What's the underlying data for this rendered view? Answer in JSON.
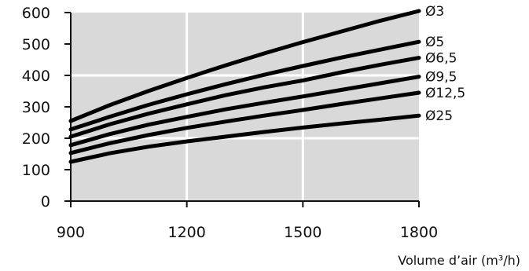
{
  "chart_data": {
    "type": "line",
    "xlabel": "Volume d’air (m³/h)",
    "ylabel": "",
    "xlim": [
      900,
      1800
    ],
    "ylim": [
      0,
      600
    ],
    "x_ticks": [
      "900",
      "1200",
      "1500",
      "1800"
    ],
    "y_ticks": [
      "0",
      "100",
      "200",
      "300",
      "400",
      "500",
      "600"
    ],
    "grid": true,
    "plot_background": "#d9d9d9",
    "grid_color": "#ffffff",
    "line_color": "#000000",
    "series": [
      {
        "name": "Ø3",
        "x": [
          900,
          1000,
          1100,
          1200,
          1300,
          1400,
          1500,
          1600,
          1700,
          1800
        ],
        "y": [
          255,
          305,
          350,
          392,
          432,
          470,
          506,
          540,
          574,
          605
        ]
      },
      {
        "name": "Ø5",
        "x": [
          900,
          1000,
          1100,
          1200,
          1300,
          1400,
          1500,
          1600,
          1700,
          1800
        ],
        "y": [
          228,
          268,
          306,
          340,
          372,
          402,
          430,
          457,
          482,
          507
        ]
      },
      {
        "name": "Ø6,5",
        "x": [
          900,
          1000,
          1100,
          1200,
          1300,
          1400,
          1500,
          1600,
          1700,
          1800
        ],
        "y": [
          205,
          244,
          278,
          308,
          337,
          362,
          384,
          410,
          434,
          456
        ]
      },
      {
        "name": "Ø9,5",
        "x": [
          900,
          1000,
          1100,
          1200,
          1300,
          1400,
          1500,
          1600,
          1700,
          1800
        ],
        "y": [
          178,
          213,
          243,
          268,
          292,
          313,
          333,
          354,
          375,
          396
        ]
      },
      {
        "name": "Ø12,5",
        "x": [
          900,
          1000,
          1100,
          1200,
          1300,
          1400,
          1500,
          1600,
          1700,
          1800
        ],
        "y": [
          153,
          184,
          210,
          233,
          253,
          272,
          290,
          309,
          327,
          345
        ]
      },
      {
        "name": "Ø25",
        "x": [
          900,
          1000,
          1100,
          1200,
          1300,
          1400,
          1500,
          1600,
          1700,
          1800
        ],
        "y": [
          125,
          152,
          173,
          190,
          205,
          220,
          234,
          247,
          259,
          272
        ]
      }
    ]
  }
}
